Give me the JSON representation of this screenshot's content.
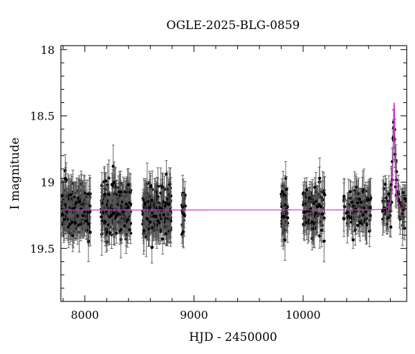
{
  "chart_data": {
    "type": "scatter",
    "title": "OGLE-2025-BLG-0859",
    "xlabel": "HJD - 2450000",
    "ylabel": "I magnitude",
    "xlim": [
      7780,
      10950
    ],
    "ylim": [
      19.9,
      17.97
    ],
    "y_inverted": true,
    "x_ticks": [
      8000,
      9000,
      10000
    ],
    "y_ticks": [
      18,
      18.5,
      19,
      19.5
    ],
    "x_tick_labels": [
      "8000",
      "9000",
      "10000"
    ],
    "y_tick_labels": [
      "18",
      "18.5",
      "19",
      "19.5"
    ],
    "grid": false,
    "legend": "none",
    "baseline_magnitude": 19.21,
    "seasons": [
      {
        "x_start": 7790,
        "x_end": 8050,
        "n_points": 260
      },
      {
        "x_start": 8150,
        "x_end": 8420,
        "n_points": 260
      },
      {
        "x_start": 8530,
        "x_end": 8790,
        "n_points": 280
      },
      {
        "x_start": 8890,
        "x_end": 8920,
        "n_points": 20
      },
      {
        "x_start": 9800,
        "x_end": 9860,
        "n_points": 50
      },
      {
        "x_start": 10000,
        "x_end": 10200,
        "n_points": 110
      },
      {
        "x_start": 10370,
        "x_end": 10620,
        "n_points": 110
      },
      {
        "x_start": 10730,
        "x_end": 10940,
        "n_points": 80
      }
    ],
    "event": {
      "t0": 10835,
      "peak_magnitude": 18.4,
      "width_days": 10
    },
    "series": [
      {
        "type": "points",
        "color": "#000000",
        "marker": "filled-circle",
        "error_bars": true
      },
      {
        "type": "model",
        "color": "#cc33cc"
      }
    ]
  }
}
